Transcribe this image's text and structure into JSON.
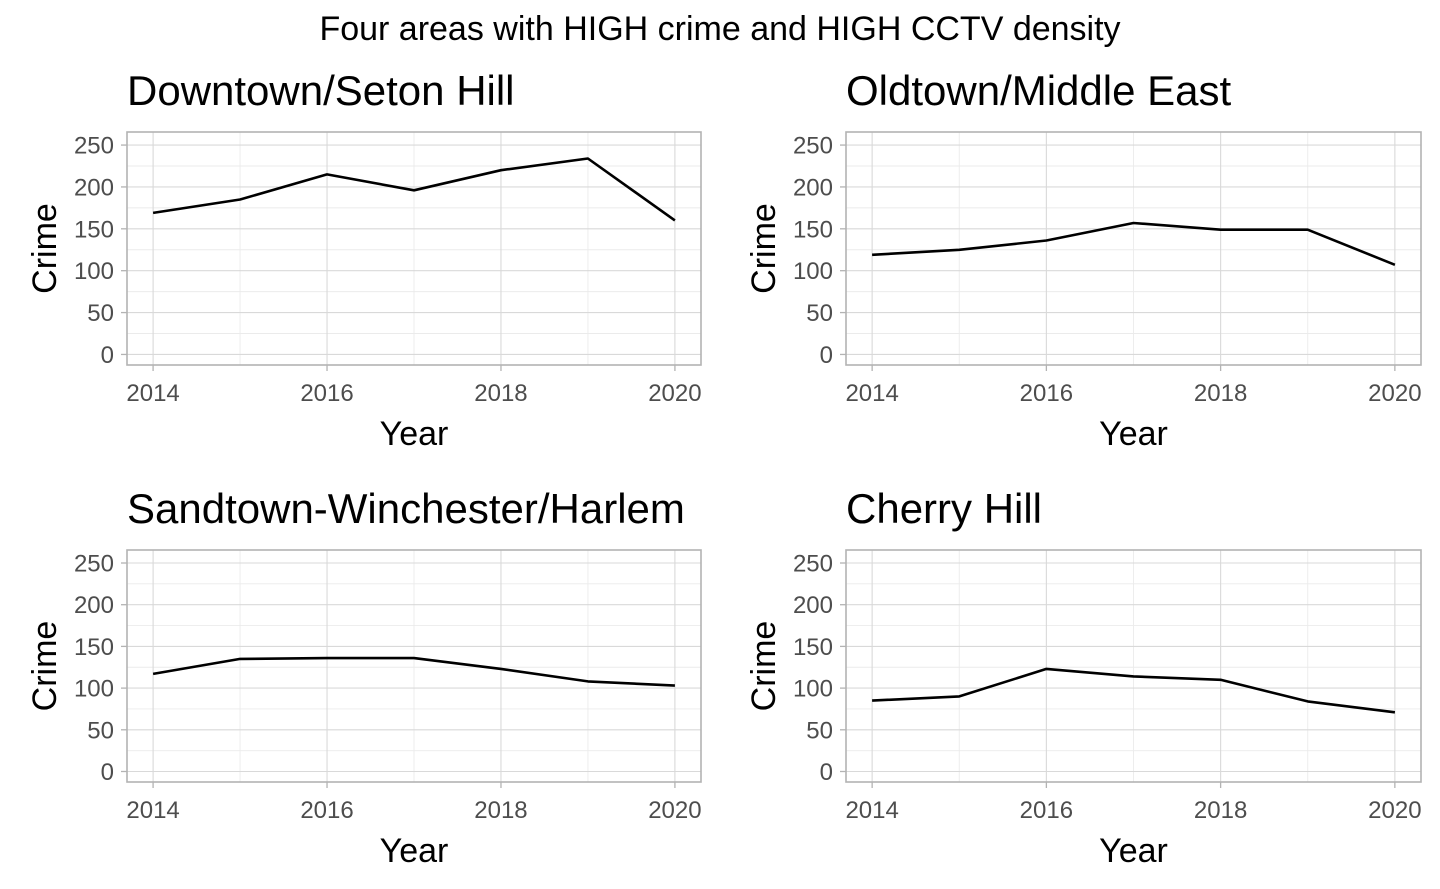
{
  "figure": {
    "title": "Four areas with HIGH crime and HIGH CCTV density"
  },
  "chart_data": [
    {
      "type": "line",
      "title": "Downtown/Seton Hill",
      "xlabel": "Year",
      "ylabel": "Crime",
      "x": [
        2014,
        2015,
        2016,
        2017,
        2018,
        2019,
        2020
      ],
      "series": [
        {
          "values": [
            169,
            185,
            215,
            196,
            220,
            234,
            160
          ]
        }
      ],
      "xlim": [
        2013.7,
        2020.3
      ],
      "ylim": [
        -12.6,
        265.6
      ],
      "xticks": [
        2014,
        2016,
        2018,
        2020
      ],
      "yticks": [
        0,
        50,
        100,
        150,
        200,
        250
      ],
      "grid": true,
      "line_color": "#000000"
    },
    {
      "type": "line",
      "title": "Oldtown/Middle East",
      "xlabel": "Year",
      "ylabel": "Crime",
      "x": [
        2014,
        2015,
        2016,
        2017,
        2018,
        2019,
        2020
      ],
      "series": [
        {
          "values": [
            119,
            125,
            136,
            157,
            149,
            149,
            107
          ]
        }
      ],
      "xlim": [
        2013.7,
        2020.3
      ],
      "ylim": [
        -12.6,
        265.6
      ],
      "xticks": [
        2014,
        2016,
        2018,
        2020
      ],
      "yticks": [
        0,
        50,
        100,
        150,
        200,
        250
      ],
      "grid": true,
      "line_color": "#000000"
    },
    {
      "type": "line",
      "title": "Sandtown-Winchester/Harlem",
      "xlabel": "Year",
      "ylabel": "Crime",
      "x": [
        2014,
        2015,
        2016,
        2017,
        2018,
        2019,
        2020
      ],
      "series": [
        {
          "values": [
            117,
            135,
            136,
            136,
            123,
            108,
            103
          ]
        }
      ],
      "xlim": [
        2013.7,
        2020.3
      ],
      "ylim": [
        -12.6,
        265.6
      ],
      "xticks": [
        2014,
        2016,
        2018,
        2020
      ],
      "yticks": [
        0,
        50,
        100,
        150,
        200,
        250
      ],
      "grid": true,
      "line_color": "#000000"
    },
    {
      "type": "line",
      "title": "Cherry Hill",
      "xlabel": "Year",
      "ylabel": "Crime",
      "x": [
        2014,
        2015,
        2016,
        2017,
        2018,
        2019,
        2020
      ],
      "series": [
        {
          "values": [
            85,
            90,
            123,
            114,
            110,
            84,
            71
          ]
        }
      ],
      "xlim": [
        2013.7,
        2020.3
      ],
      "ylim": [
        -12.6,
        265.6
      ],
      "xticks": [
        2014,
        2016,
        2018,
        2020
      ],
      "yticks": [
        0,
        50,
        100,
        150,
        200,
        250
      ],
      "grid": true,
      "line_color": "#000000"
    }
  ]
}
